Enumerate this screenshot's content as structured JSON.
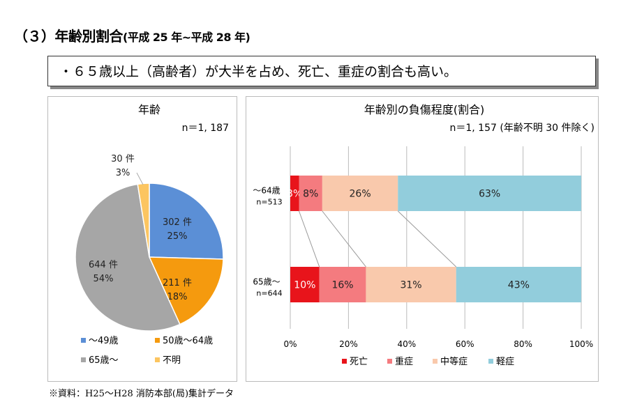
{
  "page_title": "（３）年齢別割合",
  "page_title_period": "(平成 25 年~平成 28 年)",
  "summary": "・６５歳以上（高齢者）が大半を占め、死亡、重症の割合も高い。",
  "source": "※資料：H25～H28 消防本部(局)集計データ",
  "chart_data": [
    {
      "type": "pie",
      "title": "年齢",
      "subtitle": "n＝1, 187",
      "slices": [
        {
          "name": "～49歳",
          "count_label": "302 件",
          "pct_label": "25%",
          "value": 302,
          "color": "#5b8fd6"
        },
        {
          "name": "50歳～64歳",
          "count_label": "211 件",
          "pct_label": "18%",
          "value": 211,
          "color": "#f59a0e"
        },
        {
          "name": "65歳～",
          "count_label": "644 件",
          "pct_label": "54%",
          "value": 644,
          "color": "#a6a6a6"
        },
        {
          "name": "不明",
          "count_label": "30 件",
          "pct_label": "3%",
          "value": 30,
          "color": "#fcc560"
        }
      ],
      "legend_placement": "bottom"
    },
    {
      "type": "bar",
      "stacked": true,
      "orientation": "horizontal",
      "title": "年齢別の負傷程度(割合)",
      "subtitle": "n＝1, 157 (年齢不明 30 件除く)",
      "categories": [
        {
          "label": "～64歳",
          "n": "n=513"
        },
        {
          "label": "65歳～",
          "n": "n=644"
        }
      ],
      "series": [
        {
          "name": "死亡",
          "color": "#e8141b",
          "values": [
            3,
            10
          ],
          "label_color": "#ffffff"
        },
        {
          "name": "重症",
          "color": "#f47b7f",
          "values": [
            8,
            16
          ],
          "label_color": "#222222"
        },
        {
          "name": "中等症",
          "color": "#f9c9ac",
          "values": [
            26,
            31
          ],
          "label_color": "#222222"
        },
        {
          "name": "軽症",
          "color": "#92cddc",
          "values": [
            63,
            43
          ],
          "label_color": "#222222"
        }
      ],
      "xlim": [
        0,
        100
      ],
      "xticks": [
        "0%",
        "20%",
        "40%",
        "60%",
        "80%",
        "100%"
      ],
      "grid": true,
      "legend_placement": "bottom"
    }
  ]
}
